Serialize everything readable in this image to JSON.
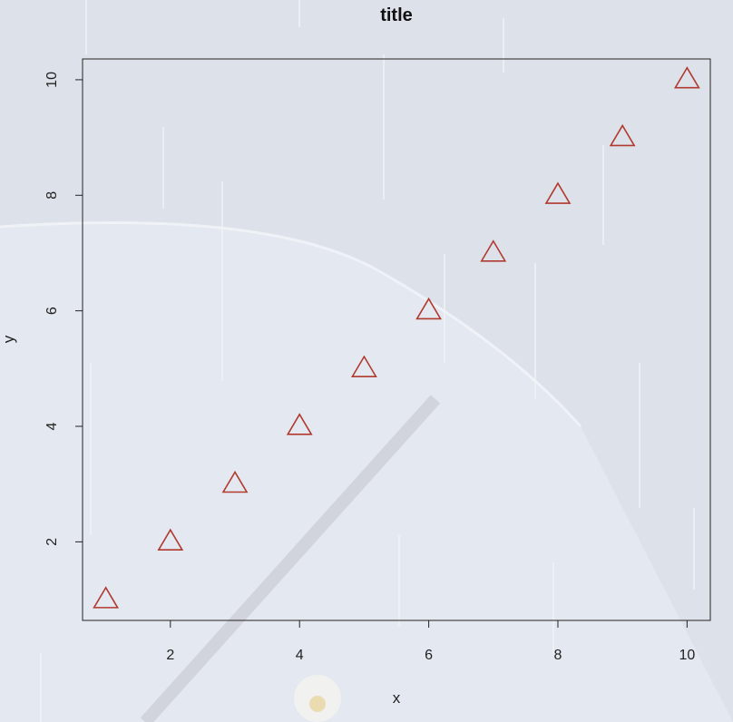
{
  "chart_data": {
    "type": "scatter",
    "title": "title",
    "xlabel": "x",
    "ylabel": "y",
    "x": [
      1,
      2,
      3,
      4,
      5,
      6,
      7,
      8,
      9,
      10
    ],
    "y": [
      1,
      2,
      3,
      4,
      5,
      6,
      7,
      8,
      9,
      10
    ],
    "xlim": [
      0.64,
      10.36
    ],
    "ylim": [
      0.64,
      10.36
    ],
    "xticks": [
      2,
      4,
      6,
      8,
      10
    ],
    "yticks": [
      2,
      4,
      6,
      8,
      10
    ],
    "marker": "triangle-open",
    "marker_color": "#b03a2e",
    "grid": false,
    "legend": "none"
  }
}
